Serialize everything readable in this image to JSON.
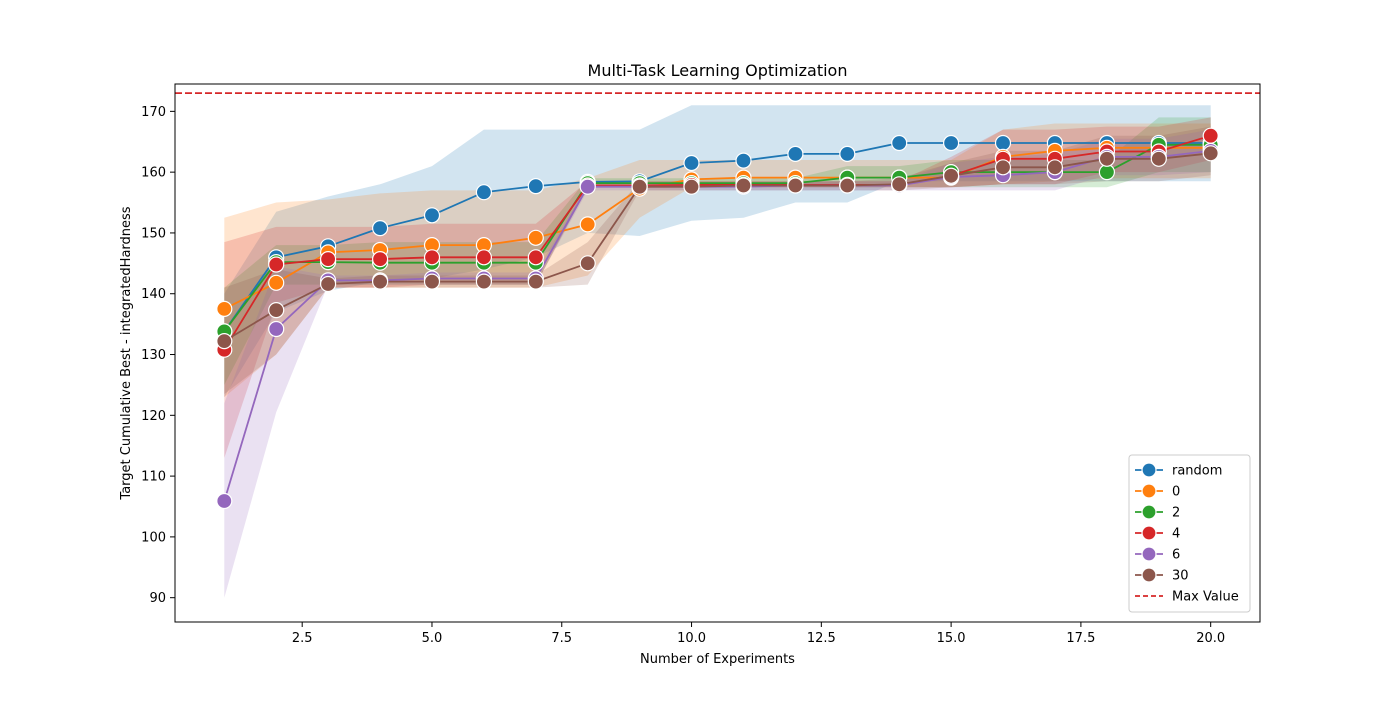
{
  "chart_data": {
    "type": "line",
    "title": "Multi-Task Learning Optimization",
    "xlabel": "Number of Experiments",
    "ylabel": "Target Cumulative Best - integratedHardness",
    "xlim": [
      0.05,
      20.95
    ],
    "ylim": [
      86,
      174.5
    ],
    "xticks": [
      2.5,
      5.0,
      7.5,
      10.0,
      12.5,
      15.0,
      17.5,
      20.0
    ],
    "xtick_labels": [
      "2.5",
      "5.0",
      "7.5",
      "10.0",
      "12.5",
      "15.0",
      "17.5",
      "20.0"
    ],
    "yticks": [
      90,
      100,
      110,
      120,
      130,
      140,
      150,
      160,
      170
    ],
    "ytick_labels": [
      "90",
      "100",
      "110",
      "120",
      "130",
      "140",
      "150",
      "160",
      "170"
    ],
    "grid": false,
    "legend": "lower-right",
    "max_value": {
      "label": "Max Value",
      "y": 173,
      "color": "#d62728"
    },
    "x": [
      1,
      2,
      3,
      4,
      5,
      6,
      7,
      8,
      9,
      10,
      11,
      12,
      13,
      14,
      15,
      16,
      17,
      18,
      19,
      20
    ],
    "series": [
      {
        "name": "random",
        "color": "#1f77b4",
        "values": [
          133.8,
          146.0,
          147.8,
          150.8,
          152.9,
          156.7,
          157.7,
          158.4,
          158.5,
          161.5,
          161.9,
          163.0,
          163.0,
          164.8,
          164.8,
          164.8,
          164.8,
          164.8,
          164.8,
          164.8
        ],
        "lower": [
          123.0,
          137.0,
          140.5,
          142.0,
          142.5,
          144.0,
          146.0,
          150.0,
          149.5,
          152.0,
          152.5,
          155.0,
          155.0,
          158.5,
          158.5,
          158.5,
          158.5,
          158.5,
          158.5,
          158.5
        ],
        "upper": [
          140.0,
          153.5,
          156.0,
          158.0,
          161.0,
          167.0,
          167.0,
          167.0,
          167.0,
          171.0,
          171.0,
          171.0,
          171.0,
          171.0,
          171.0,
          171.0,
          171.0,
          171.0,
          171.0,
          171.0
        ]
      },
      {
        "name": "0",
        "color": "#ff7f0e",
        "values": [
          137.5,
          141.8,
          146.8,
          147.2,
          148.0,
          148.0,
          149.2,
          151.4,
          157.3,
          158.8,
          159.1,
          159.1,
          159.1,
          159.1,
          159.1,
          162.5,
          163.5,
          164.0,
          164.0,
          164.0
        ],
        "lower": [
          123.0,
          130.0,
          141.0,
          141.0,
          141.0,
          141.0,
          141.0,
          143.0,
          152.5,
          157.5,
          157.5,
          157.5,
          157.5,
          157.5,
          157.5,
          158.0,
          158.5,
          159.0,
          159.0,
          159.0
        ],
        "upper": [
          152.5,
          155.0,
          155.5,
          156.5,
          157.0,
          157.0,
          157.0,
          159.0,
          162.0,
          162.0,
          162.0,
          162.0,
          162.0,
          162.0,
          162.0,
          167.0,
          168.0,
          168.0,
          168.0,
          168.0
        ]
      },
      {
        "name": "2",
        "color": "#2ca02c",
        "values": [
          133.8,
          145.2,
          145.2,
          145.1,
          145.1,
          145.1,
          145.1,
          158.2,
          158.2,
          158.2,
          158.2,
          158.2,
          159.1,
          159.1,
          160.0,
          160.0,
          160.0,
          160.0,
          164.5,
          164.5
        ],
        "lower": [
          125.0,
          141.5,
          141.5,
          141.5,
          141.5,
          141.5,
          141.5,
          157.5,
          157.5,
          157.5,
          157.5,
          157.5,
          157.5,
          157.5,
          157.5,
          157.5,
          157.5,
          157.5,
          160.0,
          160.0
        ],
        "upper": [
          141.0,
          148.0,
          148.0,
          148.5,
          148.5,
          148.5,
          148.5,
          159.0,
          159.0,
          159.0,
          159.0,
          159.0,
          161.0,
          161.0,
          162.0,
          162.0,
          162.0,
          162.0,
          169.0,
          169.0
        ]
      },
      {
        "name": "4",
        "color": "#d62728",
        "values": [
          130.8,
          144.8,
          145.7,
          145.7,
          146.0,
          146.0,
          146.0,
          157.8,
          157.8,
          157.9,
          157.9,
          157.9,
          157.9,
          157.9,
          159.4,
          162.2,
          162.2,
          163.4,
          163.4,
          166.0
        ],
        "lower": [
          113.0,
          138.5,
          141.0,
          141.0,
          141.5,
          141.5,
          141.5,
          157.5,
          157.5,
          157.5,
          157.5,
          157.5,
          157.5,
          157.5,
          157.5,
          158.0,
          158.0,
          160.0,
          160.0,
          162.0
        ],
        "upper": [
          148.5,
          151.0,
          151.0,
          151.0,
          151.5,
          151.5,
          151.5,
          158.5,
          158.5,
          158.5,
          158.5,
          158.5,
          158.5,
          158.5,
          162.5,
          167.0,
          167.0,
          167.5,
          167.5,
          169.0
        ]
      },
      {
        "name": "6",
        "color": "#9467bd",
        "values": [
          105.9,
          134.2,
          142.2,
          142.2,
          142.5,
          142.5,
          142.5,
          157.6,
          157.6,
          157.6,
          157.6,
          157.8,
          157.8,
          157.8,
          159.2,
          159.5,
          160.0,
          162.5,
          162.5,
          163.5
        ],
        "lower": [
          90.0,
          120.5,
          141.5,
          141.5,
          141.5,
          141.5,
          141.5,
          157.0,
          157.0,
          157.0,
          157.0,
          157.0,
          157.0,
          157.0,
          157.0,
          157.0,
          157.0,
          159.5,
          159.5,
          160.0
        ],
        "upper": [
          122.0,
          144.5,
          143.0,
          143.0,
          143.5,
          143.5,
          143.5,
          158.0,
          158.0,
          158.0,
          158.0,
          158.5,
          158.5,
          158.5,
          161.5,
          162.5,
          163.0,
          165.5,
          165.5,
          167.0
        ]
      },
      {
        "name": "30",
        "color": "#8c564b",
        "values": [
          132.2,
          137.3,
          141.6,
          142.0,
          142.0,
          142.0,
          142.0,
          145.0,
          157.6,
          157.6,
          157.8,
          157.8,
          157.8,
          158.0,
          159.4,
          160.8,
          160.8,
          162.2,
          162.2,
          163.1
        ],
        "lower": [
          123.5,
          130.0,
          141.0,
          141.0,
          141.0,
          141.0,
          141.0,
          141.5,
          157.0,
          157.0,
          157.0,
          157.0,
          157.0,
          157.0,
          157.5,
          158.0,
          158.0,
          158.5,
          158.5,
          159.5
        ],
        "upper": [
          141.0,
          144.0,
          142.5,
          143.0,
          143.0,
          143.0,
          143.0,
          148.5,
          158.5,
          158.5,
          158.5,
          158.5,
          158.5,
          159.0,
          161.5,
          163.5,
          163.5,
          166.0,
          166.0,
          167.5
        ]
      }
    ]
  }
}
